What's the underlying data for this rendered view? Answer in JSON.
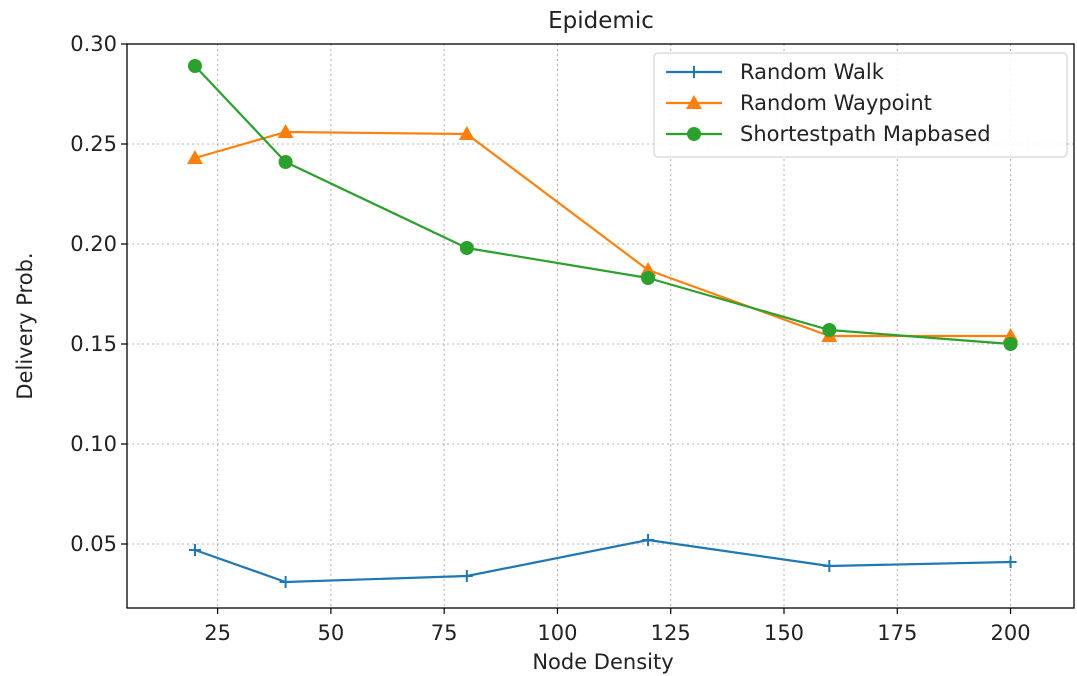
{
  "chart_data": {
    "type": "line",
    "title": "Epidemic",
    "xlabel": "Node Density",
    "ylabel": "Delivery Prob.",
    "x": [
      20,
      40,
      80,
      120,
      160,
      200
    ],
    "xlim": [
      5,
      214
    ],
    "ylim": [
      0.018,
      0.3
    ],
    "xticks": [
      25,
      50,
      75,
      100,
      125,
      150,
      175,
      200
    ],
    "yticks": [
      0.05,
      0.1,
      0.15,
      0.2,
      0.25,
      0.3
    ],
    "ytick_labels": [
      "0.05",
      "0.10",
      "0.15",
      "0.20",
      "0.25",
      "0.30"
    ],
    "grid": true,
    "legend_position": "top-right",
    "series": [
      {
        "name": "Random Walk",
        "color": "#1f77b4",
        "marker": "plus",
        "values": [
          0.047,
          0.031,
          0.034,
          0.052,
          0.039,
          0.041
        ]
      },
      {
        "name": "Random Waypoint",
        "color": "#ff7f0e",
        "marker": "triangle",
        "values": [
          0.243,
          0.256,
          0.255,
          0.187,
          0.154,
          0.154
        ]
      },
      {
        "name": "Shortestpath Mapbased",
        "color": "#2ca02c",
        "marker": "circle",
        "values": [
          0.289,
          0.241,
          0.198,
          0.183,
          0.157,
          0.15
        ]
      }
    ]
  }
}
